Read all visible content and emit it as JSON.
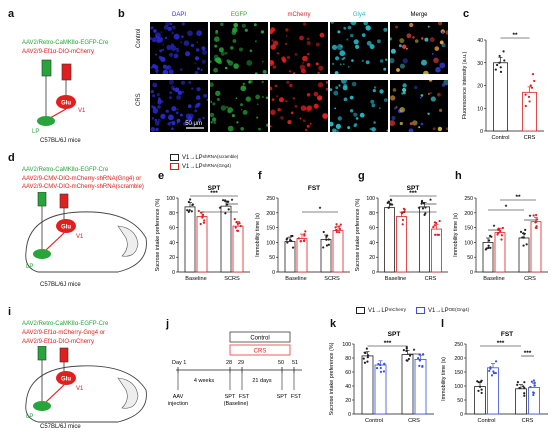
{
  "panels": {
    "a": "a",
    "b": "b",
    "c": "c",
    "d": "d",
    "e": "e",
    "f": "f",
    "g": "g",
    "h": "h",
    "i": "i",
    "j": "j",
    "k": "k",
    "l": "l"
  },
  "panel_a": {
    "virus1": "AAV2/Retro-CaMKⅡα-EGFP-Cre",
    "virus2": "AAV2/9-Ef1α-DIO-mCherry",
    "glu": "Glu",
    "v1": "V1",
    "lp": "LP",
    "mouse": "C57BL/6J mice"
  },
  "panel_b": {
    "channels": [
      "DAPI",
      "EGFP",
      "mCherry",
      "Gly4",
      "Merge"
    ],
    "rows": [
      "Control",
      "CRS"
    ],
    "scalebar": "50 μm",
    "colors": {
      "DAPI": "#2b2bd8",
      "EGFP": "#27a53a",
      "mCherry": "#e01f1f",
      "Gly4": "#27b8c8",
      "Merge": "#000"
    }
  },
  "panel_c": {
    "ylabel": "Fluorescence intensity (a.u.)",
    "yticks": [
      "0",
      "10",
      "20",
      "30",
      "40"
    ],
    "categories": [
      "Control",
      "CRS"
    ],
    "sig": "**"
  },
  "panel_d": {
    "virus1": "AAV2/Retro-CaMKⅡα-EGFP-Cre",
    "virus2": "AAV2/9-CMV-DIO-mCherry-shRNA(Gng4) or",
    "virus3": "AAV2/9-CMV-DIO-mCherry-shRNA(scramble)",
    "glu": "Glu",
    "v1": "V1",
    "lp": "LP",
    "mouse": "C57BL/6J mice"
  },
  "legend_eh": {
    "item1": "V1→LP",
    "item1_sup": "shRNA(scramble)",
    "item2": "V1→LP",
    "item2_sup": "shRNA(Gng4)"
  },
  "legend_kl": {
    "item1": "V1→LP",
    "item1_sup": "mCherry",
    "item2": "V1→LP",
    "item2_sup": "OE(Gng4)"
  },
  "panel_i": {
    "virus1": "AAV2/Retro-CaMKⅡα-EGFP-Cre",
    "virus2": "AAV2/9-Ef1α-mCherry-Gng4 or",
    "virus3": "AAV2/9-Ef1α-DIO-mCherry",
    "glu": "Glu",
    "v1": "V1",
    "lp": "LP",
    "mouse": "C57BL/6J mice"
  },
  "panel_j": {
    "control": "Control",
    "crs": "CRS",
    "day1": "Day 1",
    "d28": "28",
    "d29": "29",
    "d50": "50",
    "d51": "51",
    "weeks": "4 weeks",
    "days": "21 days",
    "aav": "AAV",
    "injection": "injection",
    "spt1": "SPT",
    "fst1": "FST",
    "baseline": "(Baseline)",
    "spt2": "SPT",
    "fst2": "FST"
  },
  "colors": {
    "scramble": "#222222",
    "gng4": "#e01f1f",
    "mcherry": "#222222",
    "oe": "#3b4fe0"
  },
  "chart_data": [
    {
      "id": "c",
      "type": "bar",
      "title": "",
      "ylabel": "Fluorescence intensity (a.u.)",
      "ylim": [
        0,
        40
      ],
      "categories": [
        "Control",
        "CRS"
      ],
      "series": [
        {
          "values": [
            30,
            17
          ]
        }
      ],
      "points": [
        [
          33,
          31,
          28,
          35,
          26,
          30,
          27,
          29
        ],
        [
          22,
          15,
          11,
          19,
          13,
          25,
          16,
          20
        ]
      ],
      "sig": "**"
    },
    {
      "id": "e",
      "type": "bar",
      "title": "SPT",
      "ylabel": "Sucrose intake preference (%)",
      "ylim": [
        0,
        100
      ],
      "yticks": [
        0,
        20,
        40,
        60,
        80,
        100
      ],
      "categories": [
        "Baseline",
        "SCRS"
      ],
      "series": [
        {
          "values": [
            88,
            89
          ]
        },
        {
          "values": [
            75,
            62
          ]
        }
      ],
      "sig": [
        "***",
        "*",
        "*"
      ]
    },
    {
      "id": "f",
      "type": "bar",
      "title": "FST",
      "ylabel": "Immobility time (s)",
      "ylim": [
        0,
        250
      ],
      "yticks": [
        0,
        50,
        100,
        150,
        200,
        250
      ],
      "categories": [
        "Baseline",
        "SCRS"
      ],
      "series": [
        {
          "values": [
            103,
            110
          ]
        },
        {
          "values": [
            113,
            140
          ]
        }
      ],
      "sig": [
        "*"
      ]
    },
    {
      "id": "g",
      "type": "bar",
      "title": "SPT",
      "ylabel": "Sucrose intake preference (%)",
      "ylim": [
        0,
        100
      ],
      "yticks": [
        0,
        20,
        40,
        60,
        80,
        100
      ],
      "categories": [
        "Baseline",
        "CRS"
      ],
      "series": [
        {
          "values": [
            87,
            88
          ]
        },
        {
          "values": [
            75,
            58
          ]
        }
      ],
      "sig": [
        "***",
        "*",
        "*"
      ]
    },
    {
      "id": "h",
      "type": "bar",
      "title": "",
      "ylabel": "Immobility time (s)",
      "ylim": [
        0,
        250
      ],
      "yticks": [
        0,
        50,
        100,
        150,
        200,
        250
      ],
      "categories": [
        "Baseline",
        "CRS"
      ],
      "series": [
        {
          "values": [
            100,
            115
          ]
        },
        {
          "values": [
            133,
            170
          ]
        }
      ],
      "sig": [
        "**",
        "*",
        "*",
        "*"
      ]
    },
    {
      "id": "k",
      "type": "bar",
      "title": "SPT",
      "ylabel": "Sucrose intake preference (%)",
      "ylim": [
        0,
        100
      ],
      "yticks": [
        0,
        20,
        40,
        60,
        80,
        100
      ],
      "categories": [
        "Control",
        "CRS"
      ],
      "series": [
        {
          "values": [
            83,
            85
          ]
        },
        {
          "values": [
            70,
            78
          ]
        }
      ],
      "sig": [
        "***",
        "*"
      ]
    },
    {
      "id": "l",
      "type": "bar",
      "title": "FST",
      "ylabel": "Immobility time (s)",
      "ylim": [
        0,
        250
      ],
      "yticks": [
        0,
        50,
        100,
        150,
        200,
        250
      ],
      "categories": [
        "Control",
        "CRS"
      ],
      "series": [
        {
          "values": [
            98,
            90
          ]
        },
        {
          "values": [
            165,
            95
          ]
        }
      ],
      "sig": [
        "***",
        "***"
      ]
    }
  ]
}
